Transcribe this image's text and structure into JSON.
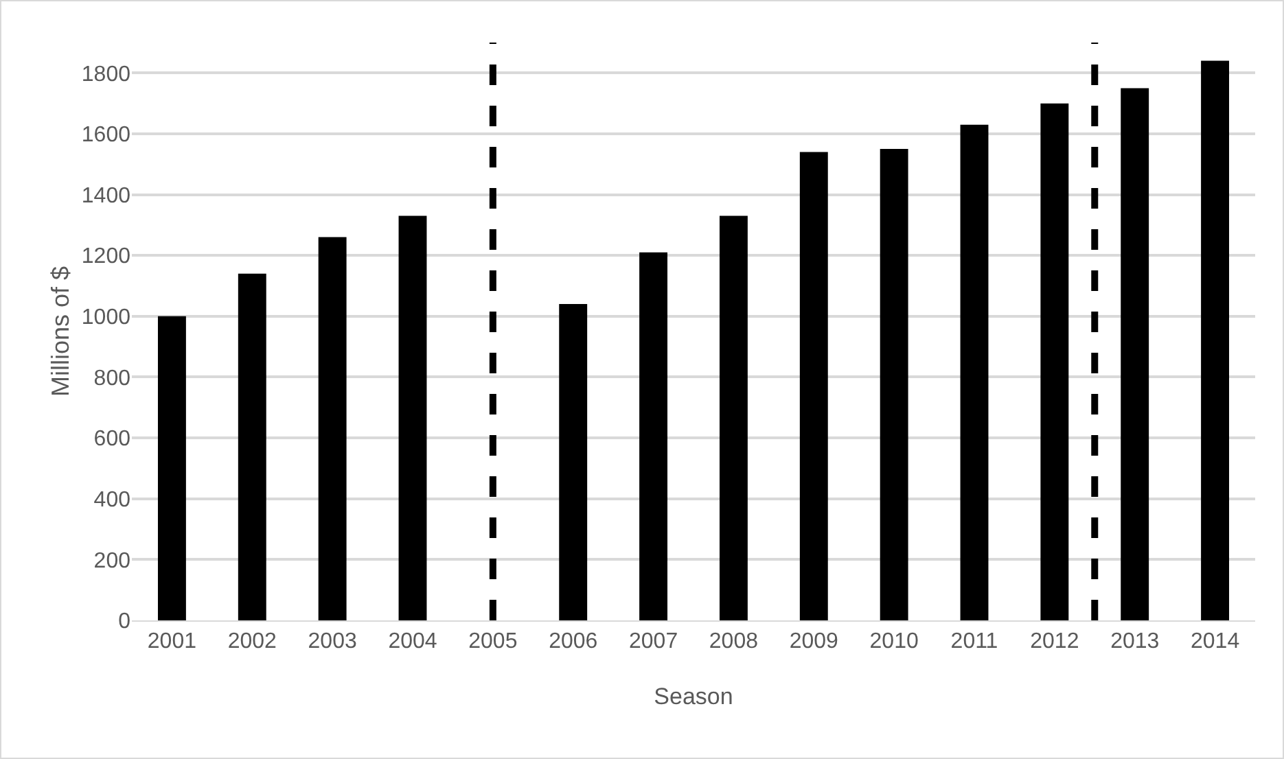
{
  "chart_data": {
    "type": "bar",
    "xlabel": "Season",
    "ylabel": "Millions of $",
    "x": [
      2001,
      2002,
      2003,
      2004,
      2005,
      2006,
      2007,
      2008,
      2009,
      2010,
      2011,
      2012,
      2013,
      2014
    ],
    "values": [
      1000,
      1140,
      1260,
      1330,
      null,
      1040,
      1210,
      1330,
      1540,
      1550,
      1630,
      1700,
      1750,
      1840
    ],
    "color": "#000000",
    "xlim": [
      2000.5,
      2014.5
    ],
    "xticks": [
      2001,
      2002,
      2003,
      2004,
      2005,
      2006,
      2007,
      2008,
      2009,
      2010,
      2011,
      2012,
      2013,
      2014
    ],
    "ylim": [
      0,
      1900
    ],
    "yticks": [
      0,
      200,
      400,
      600,
      800,
      1000,
      1200,
      1400,
      1600,
      1800
    ],
    "ref_lines": [
      {
        "axis": "x",
        "value": 2005,
        "color": "#000000",
        "line_style": "dashed"
      },
      {
        "axis": "x",
        "value": 2012.5,
        "color": "#000000",
        "line_style": "dashed"
      }
    ],
    "grid": "y"
  }
}
